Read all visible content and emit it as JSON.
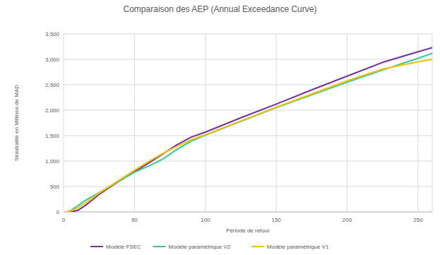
{
  "chart_data": {
    "type": "line",
    "title": "Comparaison des AEP (Annual Exceedance Curve)",
    "x_label": "Période de retour",
    "y_label": "Sinistralité en Millions de MAD",
    "x": [
      2,
      5,
      10,
      15,
      20,
      25,
      30,
      40,
      50,
      60,
      70,
      80,
      90,
      100,
      125,
      150,
      175,
      200,
      225,
      250,
      260
    ],
    "series": [
      {
        "name": "Modèle FSEC",
        "color": "#7030a0",
        "values": [
          0,
          0,
          30,
          120,
          230,
          340,
          440,
          620,
          790,
          960,
          1140,
          1320,
          1470,
          1570,
          1850,
          2120,
          2400,
          2670,
          2940,
          3150,
          3230
        ]
      },
      {
        "name": "Modèle paramétrique V2",
        "color": "#2ecc9a",
        "values": [
          0,
          30,
          120,
          220,
          300,
          380,
          460,
          620,
          780,
          900,
          1040,
          1230,
          1390,
          1510,
          1780,
          2050,
          2300,
          2550,
          2790,
          3020,
          3120
        ]
      },
      {
        "name": "Modèle paramétrique V1",
        "color": "#ffc000",
        "values": [
          0,
          20,
          80,
          170,
          270,
          370,
          460,
          640,
          820,
          990,
          1150,
          1290,
          1420,
          1520,
          1790,
          2060,
          2320,
          2580,
          2810,
          2950,
          3000
        ]
      }
    ],
    "xlim": [
      0,
      260
    ],
    "xticks": [
      0,
      50,
      100,
      150,
      200,
      250
    ],
    "ylim": [
      0,
      3500
    ],
    "yticks": [
      0,
      500,
      {
        "value": 1000,
        "label": "1,000"
      },
      {
        "value": 1500,
        "label": "1,500"
      },
      {
        "value": 2000,
        "label": "2,000"
      },
      {
        "value": 2500,
        "label": "2,500"
      },
      {
        "value": 3000,
        "label": "3,000"
      },
      {
        "value": 3500,
        "label": "3,500"
      }
    ],
    "grid": true,
    "legend": "bottom"
  }
}
